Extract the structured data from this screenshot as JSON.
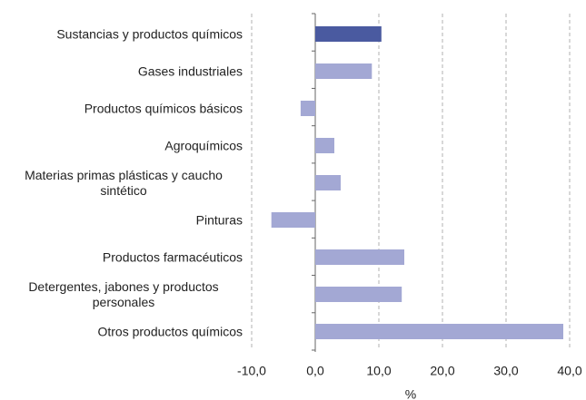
{
  "chart_data": {
    "type": "bar",
    "orientation": "horizontal",
    "categories": [
      "Sustancias y productos químicos",
      "Gases industriales",
      "Productos químicos básicos",
      "Agroquímicos",
      "Materias primas plásticas y caucho sintético",
      "Pinturas",
      "Productos farmacéuticos",
      "Detergentes, jabones y productos personales",
      "Otros productos químicos"
    ],
    "values": [
      10.4,
      8.9,
      -2.3,
      3.0,
      4.0,
      -6.9,
      14.0,
      13.6,
      39.0
    ],
    "colors": [
      "#4a5aa0",
      "#a3a8d4",
      "#a3a8d4",
      "#a3a8d4",
      "#a3a8d4",
      "#a3a8d4",
      "#a3a8d4",
      "#a3a8d4",
      "#a3a8d4"
    ],
    "xlim": [
      -10,
      40
    ],
    "xticks": [
      {
        "value": -10,
        "label": "-10,0"
      },
      {
        "value": 0,
        "label": "0,0"
      },
      {
        "value": 10,
        "label": "10,0"
      },
      {
        "value": 20,
        "label": "20,0"
      },
      {
        "value": 30,
        "label": "30,0"
      },
      {
        "value": 40,
        "label": "40,0"
      }
    ],
    "xlabel": "%",
    "grid": true
  }
}
